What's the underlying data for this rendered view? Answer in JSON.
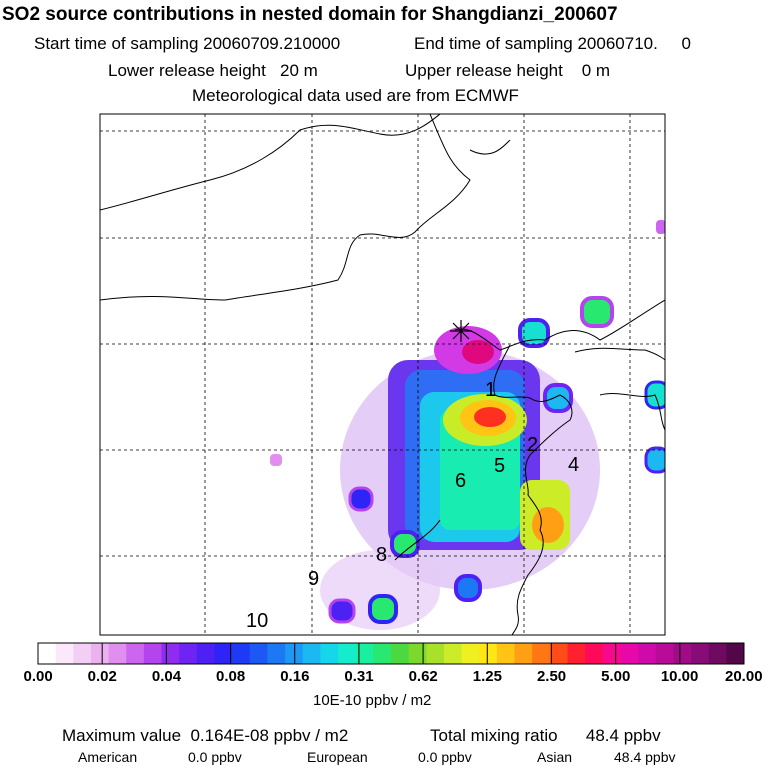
{
  "header": {
    "title": "SO2 source contributions in nested domain for Shangdianzi_200607",
    "start_time": "Start time of sampling 20060709.210000",
    "end_time": "End time of sampling 20060710.     0",
    "lower_release": "Lower release height   20 m",
    "upper_release": "Upper release height    0 m",
    "met_data": "Meteorological data used are from ECMWF"
  },
  "map": {
    "region_labels": [
      "1",
      "2",
      "4",
      "5",
      "6",
      "8",
      "9",
      "10"
    ],
    "station_marker": "asterisk-icon",
    "grid": "dashed"
  },
  "colorbar": {
    "tick_labels": [
      "0.00",
      "0.02",
      "0.04",
      "0.08",
      "0.16",
      "0.31",
      "0.62",
      "1.25",
      "2.50",
      "5.00",
      "10.00",
      "20.00"
    ],
    "colors": [
      "#ffffff",
      "#fbe9fb",
      "#f4cff5",
      "#ecb2f0",
      "#e08fee",
      "#cc66ee",
      "#b344ee",
      "#8f2cf0",
      "#6e24f2",
      "#4d20f4",
      "#2f24f6",
      "#1f3af6",
      "#1d58f4",
      "#1d78f4",
      "#1d98f4",
      "#1cb8f2",
      "#16d6ea",
      "#14eccc",
      "#18f0a0",
      "#28e870",
      "#4cd840",
      "#7cd82c",
      "#a8e02a",
      "#ccec28",
      "#eef020",
      "#ffe614",
      "#ffc414",
      "#ffa014",
      "#ff7614",
      "#ff4c18",
      "#ff2030",
      "#ff0a5a",
      "#f8088c",
      "#e808a8",
      "#d00aa8",
      "#b80c98",
      "#a00c88",
      "#880c78",
      "#6e0a62",
      "#520848"
    ],
    "unit": "10E-10 ppbv / m2"
  },
  "summary": {
    "max_label": "Maximum value  0.164E-08 ppbv / m2",
    "total_label": "Total mixing ratio      48.4 ppbv",
    "american_label": "American",
    "american_value": "0.0 ppbv",
    "european_label": "European",
    "european_value": "0.0 ppbv",
    "asian_label": "Asian",
    "asian_value": "48.4 ppbv"
  }
}
